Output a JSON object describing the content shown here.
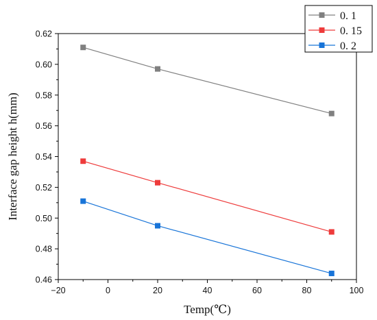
{
  "chart_data": {
    "type": "line",
    "title": "",
    "xlabel": "Temp(℃)",
    "ylabel": "Interface gap height h(mm)",
    "xlim": [
      -20,
      100
    ],
    "ylim": [
      0.46,
      0.62
    ],
    "x_ticks": [
      -20,
      0,
      20,
      40,
      60,
      80,
      100
    ],
    "x_tick_labels": [
      "−20",
      "0",
      "20",
      "40",
      "60",
      "80",
      "100"
    ],
    "y_ticks": [
      0.46,
      0.48,
      0.5,
      0.52,
      0.54,
      0.56,
      0.58,
      0.6,
      0.62
    ],
    "y_tick_labels": [
      "0.46",
      "0.48",
      "0.50",
      "0.52",
      "0.54",
      "0.56",
      "0.58",
      "0.60",
      "0.62"
    ],
    "grid": false,
    "legend_position": "top-right, outside plot",
    "marker": "square",
    "series": [
      {
        "name": "0. 1",
        "color": "#808080",
        "x": [
          -10,
          20,
          90
        ],
        "y": [
          0.611,
          0.597,
          0.568
        ]
      },
      {
        "name": "0. 15",
        "color": "#ee3b3b",
        "x": [
          -10,
          20,
          90
        ],
        "y": [
          0.537,
          0.523,
          0.491
        ]
      },
      {
        "name": "0. 2",
        "color": "#1874d8",
        "x": [
          -10,
          20,
          90
        ],
        "y": [
          0.511,
          0.495,
          0.464
        ]
      }
    ]
  }
}
